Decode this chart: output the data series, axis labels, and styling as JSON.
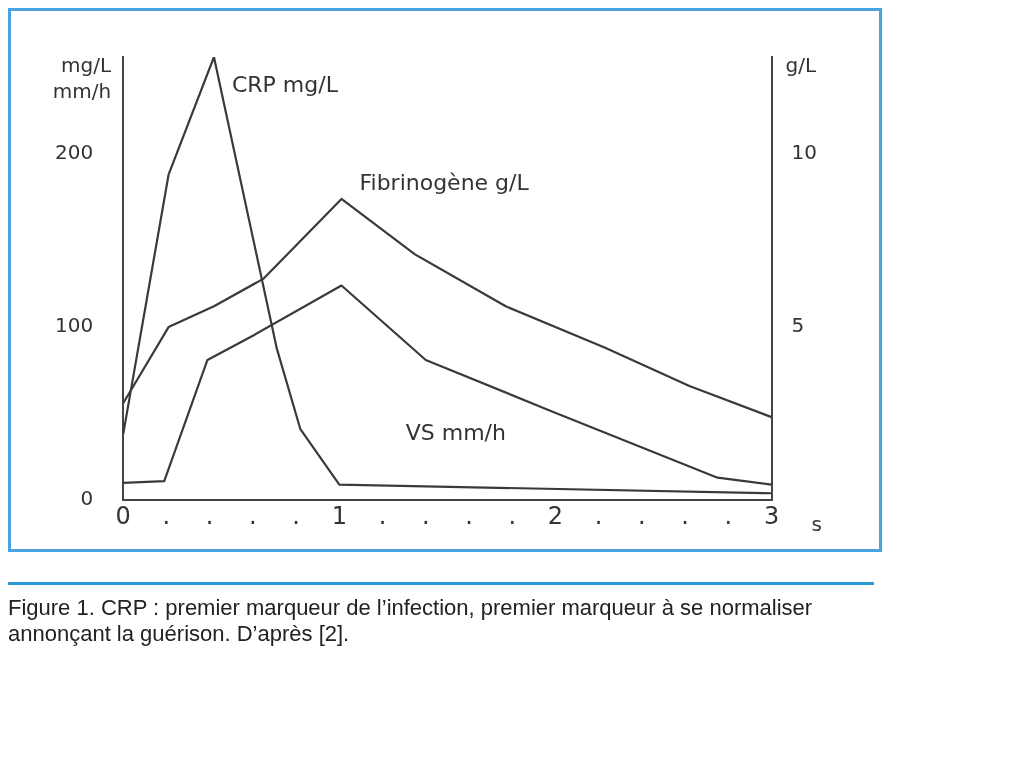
{
  "chart_data": {
    "type": "line",
    "ylabel": "mg/L\nmm/h",
    "y2label": "g/L",
    "xlabel": "s",
    "xlim": [
      0,
      3
    ],
    "xticks": [
      0,
      {
        "value": 0.2,
        "label": "."
      },
      {
        "value": 0.4,
        "label": "."
      },
      {
        "value": 0.6,
        "label": "."
      },
      {
        "value": 0.8,
        "label": "."
      },
      1,
      {
        "value": 1.2,
        "label": "."
      },
      {
        "value": 1.4,
        "label": "."
      },
      {
        "value": 1.6,
        "label": "."
      },
      {
        "value": 1.8,
        "label": "."
      },
      2,
      {
        "value": 2.2,
        "label": "."
      },
      {
        "value": 2.4,
        "label": "."
      },
      {
        "value": 2.6,
        "label": "."
      },
      {
        "value": 2.8,
        "label": "."
      },
      3
    ],
    "ylim": [
      0,
      256
    ],
    "yticks": [
      0,
      100,
      200
    ],
    "y2lim": [
      0,
      12.8
    ],
    "y2ticks": [
      5,
      10
    ],
    "series": [
      {
        "name": "CRP mg/L",
        "color": "#3a3a3a",
        "x": [
          0,
          0.21,
          0.42,
          0.71,
          0.82,
          1.0,
          3
        ],
        "values": [
          38,
          188,
          256,
          88,
          41,
          9,
          4
        ]
      },
      {
        "name": "Fibrinogène g/L",
        "color": "#3a3a3a",
        "axis": "y2",
        "x": [
          0,
          0.21,
          0.42,
          0.65,
          1.01,
          1.35,
          1.77,
          2.23,
          2.62,
          3
        ],
        "values": [
          2.8,
          5.0,
          5.6,
          6.4,
          8.7,
          7.1,
          5.6,
          4.4,
          3.3,
          2.4
        ]
      },
      {
        "name": "VS mm/h",
        "color": "#3a3a3a",
        "x": [
          0,
          0.19,
          0.39,
          0.6,
          1.01,
          1.4,
          1.97,
          2.75,
          3
        ],
        "values": [
          10,
          11,
          81,
          95,
          124,
          81,
          52,
          13,
          9
        ]
      }
    ],
    "grid": false,
    "legend": false,
    "marker": "none",
    "line_style": "solid",
    "annotations": [
      "Figure 1. CRP : premier marqueur de l’infection, premier marqueur à se normaliser annonçant la guérison. D’après [2]."
    ]
  }
}
